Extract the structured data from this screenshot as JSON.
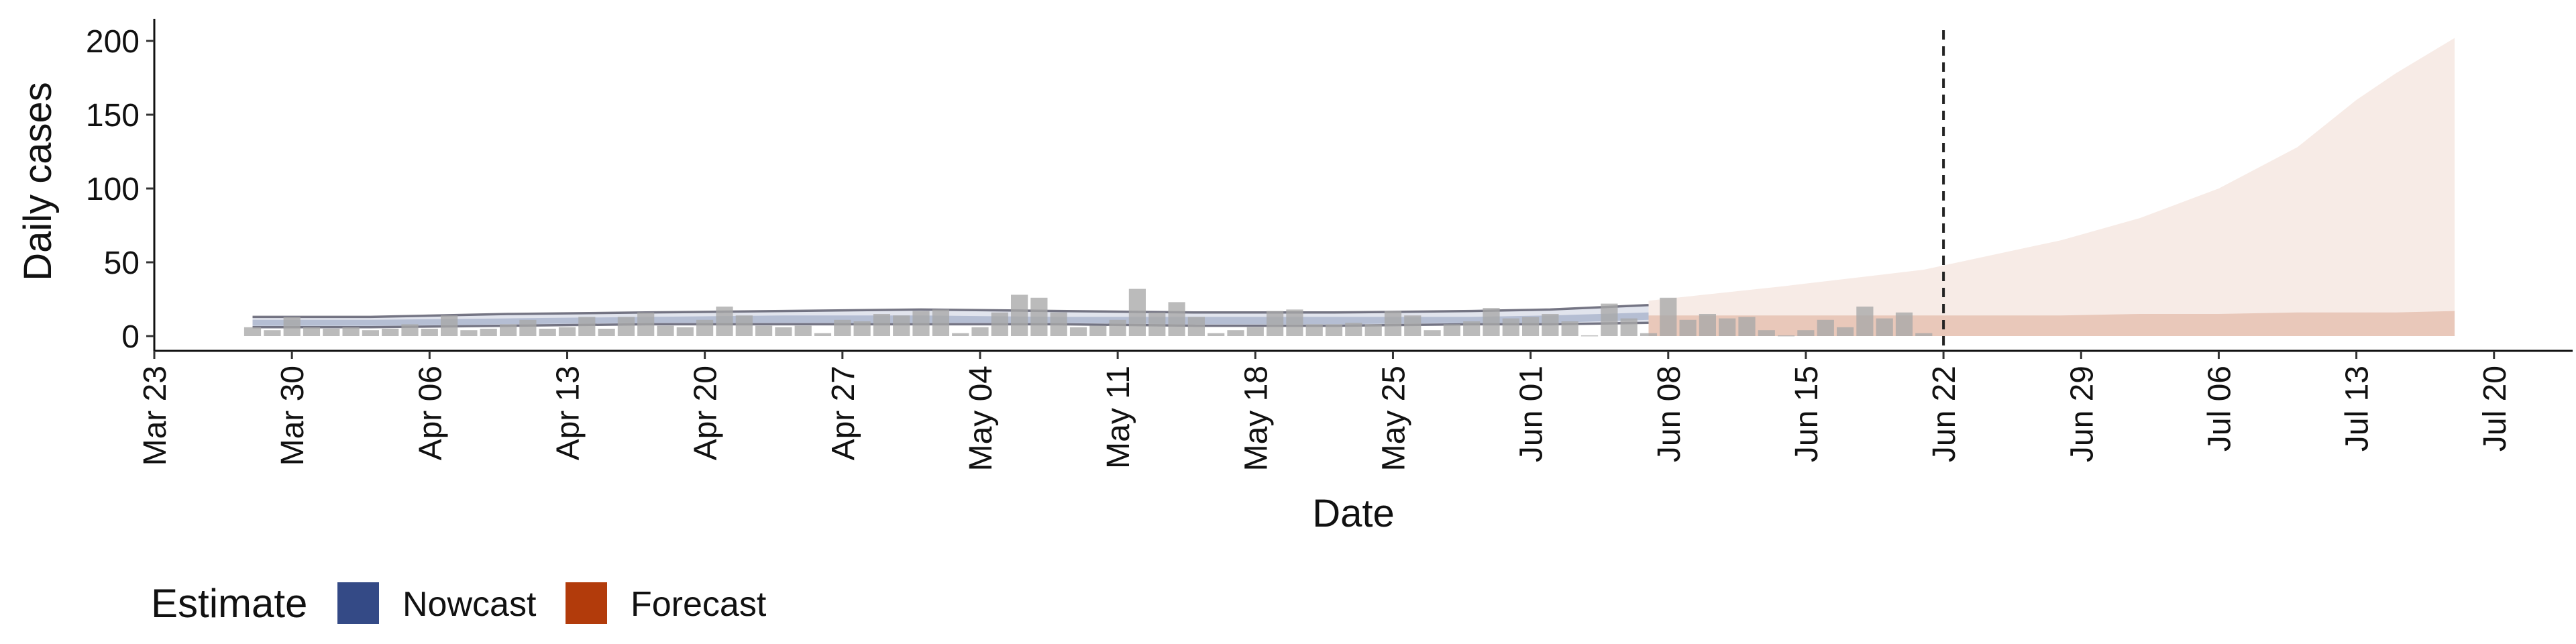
{
  "chart_data": {
    "type": "bar",
    "title": "",
    "xlabel": "Date",
    "ylabel": "Daily cases",
    "ylim": [
      -10,
      215
    ],
    "xlim": [
      "2020-03-23",
      "2020-07-24"
    ],
    "y_ticks": [
      0,
      50,
      100,
      150,
      200
    ],
    "x_ticks": [
      "2020-03-23",
      "2020-03-30",
      "2020-04-06",
      "2020-04-13",
      "2020-04-20",
      "2020-04-27",
      "2020-05-04",
      "2020-05-11",
      "2020-05-18",
      "2020-05-25",
      "2020-06-01",
      "2020-06-08",
      "2020-06-15",
      "2020-06-22",
      "2020-06-29",
      "2020-07-06",
      "2020-07-13",
      "2020-07-20"
    ],
    "x_tick_labels": [
      "Mar 23",
      "Mar 30",
      "Apr 06",
      "Apr 13",
      "Apr 20",
      "Apr 27",
      "May 04",
      "May 11",
      "May 18",
      "May 25",
      "Jun 01",
      "Jun 08",
      "Jun 15",
      "Jun 22",
      "Jun 29",
      "Jul 06",
      "Jul 13",
      "Jul 20"
    ],
    "grid": false,
    "reference_line": "2020-06-22",
    "legend": {
      "title": "Estimate",
      "placement": "bottom-left",
      "entries": [
        {
          "label": "Nowcast",
          "color": "#344a86"
        },
        {
          "label": "Forecast",
          "color": "#b23b0b"
        }
      ]
    },
    "colors": {
      "observed_bar": "#a8a8a8",
      "nowcast_band": "#344a86",
      "nowcast_line": "#555566",
      "forecast_band": "#b23b0b",
      "reference_line": "#222222"
    },
    "series": [
      {
        "kind": "observed",
        "dates": [
          "2020-03-28",
          "2020-03-29",
          "2020-03-30",
          "2020-03-31",
          "2020-04-01",
          "2020-04-02",
          "2020-04-03",
          "2020-04-04",
          "2020-04-05",
          "2020-04-06",
          "2020-04-07",
          "2020-04-08",
          "2020-04-09",
          "2020-04-10",
          "2020-04-11",
          "2020-04-12",
          "2020-04-13",
          "2020-04-14",
          "2020-04-15",
          "2020-04-16",
          "2020-04-17",
          "2020-04-18",
          "2020-04-19",
          "2020-04-20",
          "2020-04-21",
          "2020-04-22",
          "2020-04-23",
          "2020-04-24",
          "2020-04-25",
          "2020-04-26",
          "2020-04-27",
          "2020-04-28",
          "2020-04-29",
          "2020-04-30",
          "2020-05-01",
          "2020-05-02",
          "2020-05-03",
          "2020-05-04",
          "2020-05-05",
          "2020-05-06",
          "2020-05-07",
          "2020-05-08",
          "2020-05-09",
          "2020-05-10",
          "2020-05-11",
          "2020-05-12",
          "2020-05-13",
          "2020-05-14",
          "2020-05-15",
          "2020-05-16",
          "2020-05-17",
          "2020-05-18",
          "2020-05-19",
          "2020-05-20",
          "2020-05-21",
          "2020-05-22",
          "2020-05-23",
          "2020-05-24",
          "2020-05-25",
          "2020-05-26",
          "2020-05-27",
          "2020-05-28",
          "2020-05-29",
          "2020-05-30",
          "2020-05-31",
          "2020-06-01",
          "2020-06-02",
          "2020-06-03",
          "2020-06-04",
          "2020-06-05",
          "2020-06-06",
          "2020-06-07",
          "2020-06-08",
          "2020-06-09",
          "2020-06-10",
          "2020-06-11",
          "2020-06-12",
          "2020-06-13",
          "2020-06-14",
          "2020-06-15",
          "2020-06-16",
          "2020-06-17",
          "2020-06-18",
          "2020-06-19",
          "2020-06-20",
          "2020-06-21"
        ],
        "values": [
          6,
          4,
          13,
          6,
          5,
          6,
          4,
          5,
          8,
          5,
          14,
          4,
          5,
          8,
          11,
          5,
          6,
          13,
          5,
          13,
          16,
          7,
          6,
          11,
          20,
          14,
          7,
          6,
          7,
          2,
          11,
          10,
          15,
          14,
          17,
          18,
          2,
          6,
          16,
          28,
          26,
          16,
          6,
          7,
          11,
          32,
          16,
          23,
          13,
          2,
          4,
          6,
          17,
          18,
          8,
          8,
          9,
          8,
          17,
          14,
          4,
          8,
          10,
          19,
          12,
          13,
          15,
          10,
          0,
          22,
          12,
          2,
          26,
          11,
          15,
          12,
          13,
          4,
          0,
          4,
          11,
          6,
          20,
          12,
          16,
          2
        ]
      },
      {
        "kind": "nowcast",
        "name": "Nowcast",
        "dates": [
          "2020-03-28",
          "2020-04-03",
          "2020-04-10",
          "2020-04-17",
          "2020-04-24",
          "2020-05-01",
          "2020-05-08",
          "2020-05-15",
          "2020-05-22",
          "2020-05-29",
          "2020-06-02",
          "2020-06-07"
        ],
        "upper": [
          13,
          13,
          15,
          16,
          17,
          18,
          17,
          16,
          16,
          17,
          18,
          21
        ],
        "lower": [
          6,
          6,
          7,
          8,
          8,
          8,
          8,
          7,
          7,
          8,
          8,
          9
        ],
        "upper_inner": [
          11,
          11,
          12,
          13,
          14,
          14,
          13,
          13,
          13,
          13,
          14,
          16
        ],
        "lower_inner": [
          7,
          7,
          8,
          9,
          9,
          9,
          9,
          8,
          8,
          9,
          9,
          11
        ]
      },
      {
        "kind": "forecast",
        "name": "Forecast",
        "dates": [
          "2020-06-07",
          "2020-06-14",
          "2020-06-21",
          "2020-06-28",
          "2020-07-02",
          "2020-07-06",
          "2020-07-10",
          "2020-07-13",
          "2020-07-15",
          "2020-07-18"
        ],
        "upper": [
          24,
          34,
          45,
          65,
          80,
          100,
          128,
          160,
          178,
          202
        ],
        "lower": [
          0,
          0,
          0,
          0,
          0,
          0,
          0,
          0,
          0,
          0
        ],
        "upper_inner": [
          14,
          14,
          14,
          14,
          15,
          15,
          16,
          16,
          16,
          17
        ],
        "lower_inner": [
          0,
          0,
          0,
          0,
          0,
          0,
          0,
          0,
          0,
          0
        ]
      }
    ]
  }
}
